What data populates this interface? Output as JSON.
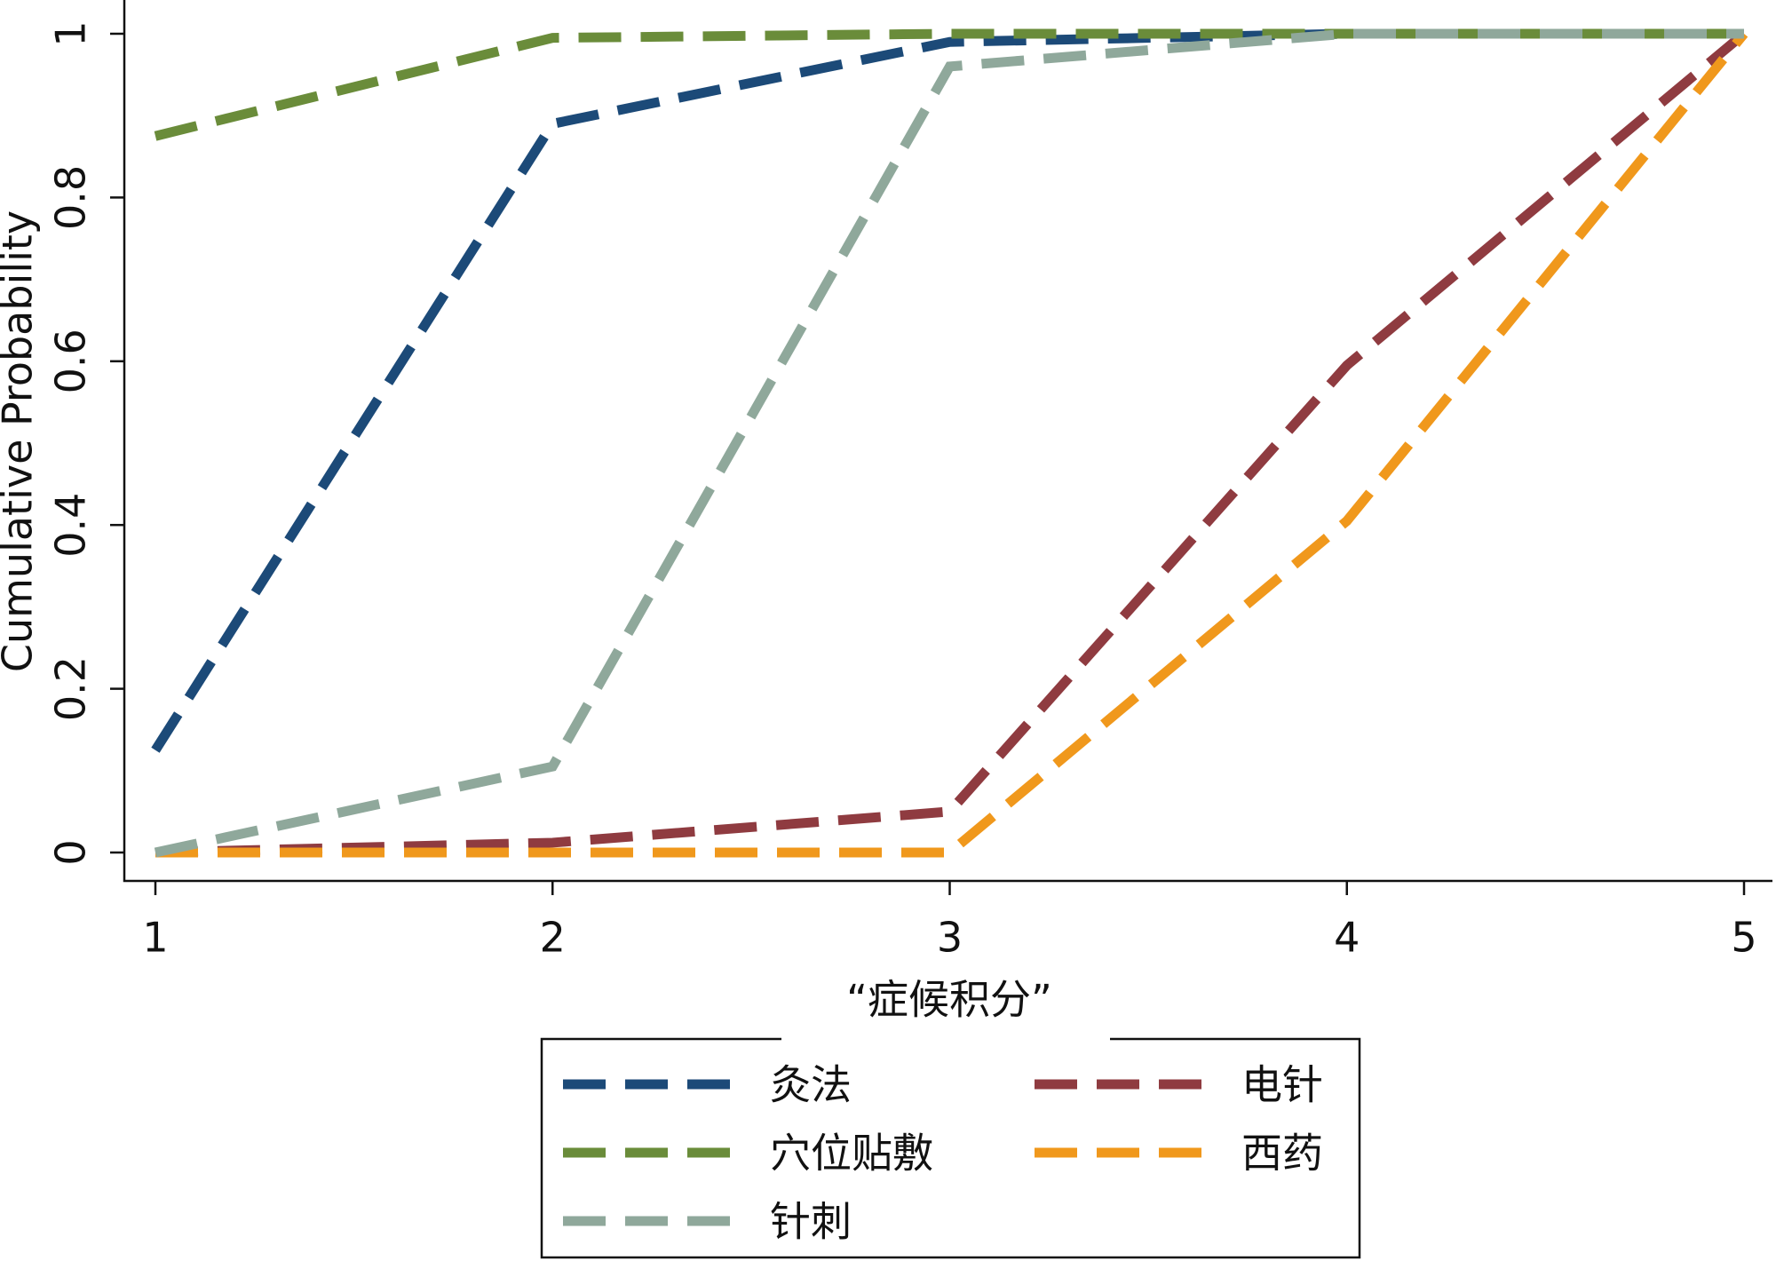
{
  "chart_data": {
    "type": "line",
    "ylabel": "Cumulative Probability",
    "xlabel": "“症候积分”",
    "x": [
      1,
      2,
      3,
      4,
      5
    ],
    "xlim": [
      1,
      5
    ],
    "xticks": [
      1,
      2,
      3,
      4,
      5
    ],
    "ylim": [
      0,
      1
    ],
    "yticks": [
      0,
      0.2,
      0.4,
      0.6,
      0.8,
      1
    ],
    "grid": false,
    "series": [
      {
        "name": "灸法",
        "color": "#1c4a78",
        "values": [
          0.125,
          0.89,
          0.99,
          1,
          1
        ]
      },
      {
        "name": "电针",
        "color": "#8f3b40",
        "values": [
          0,
          0.012,
          0.05,
          0.595,
          1
        ]
      },
      {
        "name": "穴位贴敷",
        "color": "#6a8c3a",
        "values": [
          0.875,
          0.995,
          1,
          1,
          1
        ]
      },
      {
        "name": "西药",
        "color": "#f0981c",
        "values": [
          0,
          0,
          0,
          0.405,
          1
        ]
      },
      {
        "name": "针刺",
        "color": "#8fa89b",
        "values": [
          0,
          0.105,
          0.96,
          1,
          1
        ]
      }
    ]
  }
}
